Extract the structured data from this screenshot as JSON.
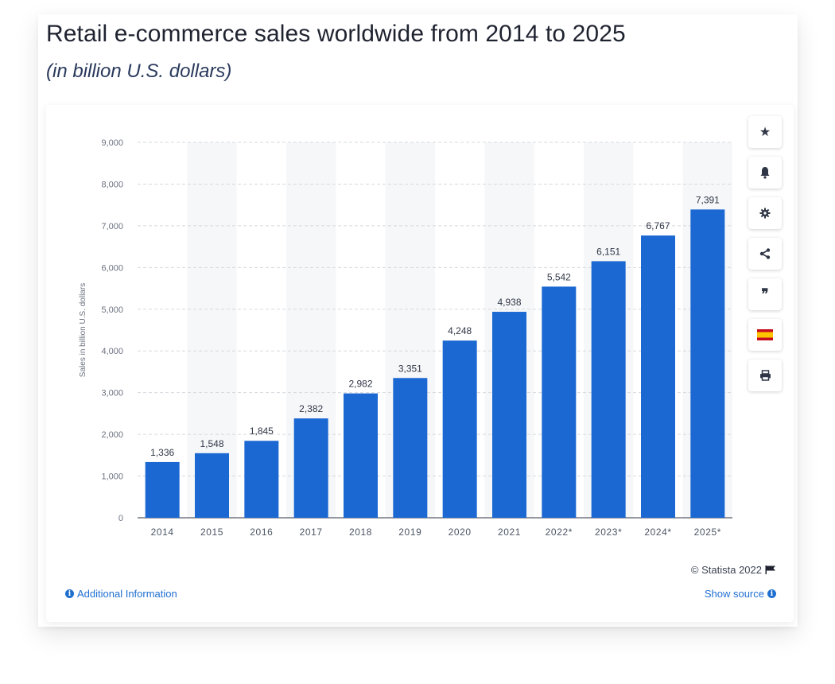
{
  "header": {
    "title": "Retail e-commerce sales worldwide from 2014 to 2025",
    "subtitle": "(in billion U.S. dollars)"
  },
  "toolbar": {
    "buttons": [
      {
        "name": "star-icon",
        "glyph": "★"
      },
      {
        "name": "bell-icon",
        "glyph": "🔔"
      },
      {
        "name": "gear-icon",
        "glyph": "⚙"
      },
      {
        "name": "share-icon",
        "glyph": "<"
      },
      {
        "name": "quote-icon",
        "glyph": "99"
      },
      {
        "name": "spain-flag-icon",
        "glyph": ""
      },
      {
        "name": "print-icon",
        "glyph": "⎙"
      }
    ]
  },
  "footer": {
    "copyright": "© Statista 2022",
    "additional_info": "Additional Information",
    "show_source": "Show source"
  },
  "colors": {
    "bar": "#1b68d2",
    "band": "#f6f7f9",
    "link": "#1f6fd0"
  },
  "chart_data": {
    "type": "bar",
    "categories": [
      "2014",
      "2015",
      "2016",
      "2017",
      "2018",
      "2019",
      "2020",
      "2021",
      "2022*",
      "2023*",
      "2024*",
      "2025*"
    ],
    "values": [
      1336,
      1548,
      1845,
      2382,
      2982,
      3351,
      4248,
      4938,
      5542,
      6151,
      6767,
      7391
    ],
    "value_labels": [
      "1,336",
      "1,548",
      "1,845",
      "2,382",
      "2,982",
      "3,351",
      "4,248",
      "4,938",
      "5,542",
      "6,151",
      "6,767",
      "7,391"
    ],
    "yticks": [
      0,
      1000,
      2000,
      3000,
      4000,
      5000,
      6000,
      7000,
      8000,
      9000
    ],
    "ytick_labels": [
      "0",
      "1,000",
      "2,000",
      "3,000",
      "4,000",
      "5,000",
      "6,000",
      "7,000",
      "8,000",
      "9,000"
    ],
    "ylabel": "Sales in billion U.S. dollars",
    "ylim": [
      0,
      9000
    ],
    "grid": true,
    "alternating_bands": true
  }
}
